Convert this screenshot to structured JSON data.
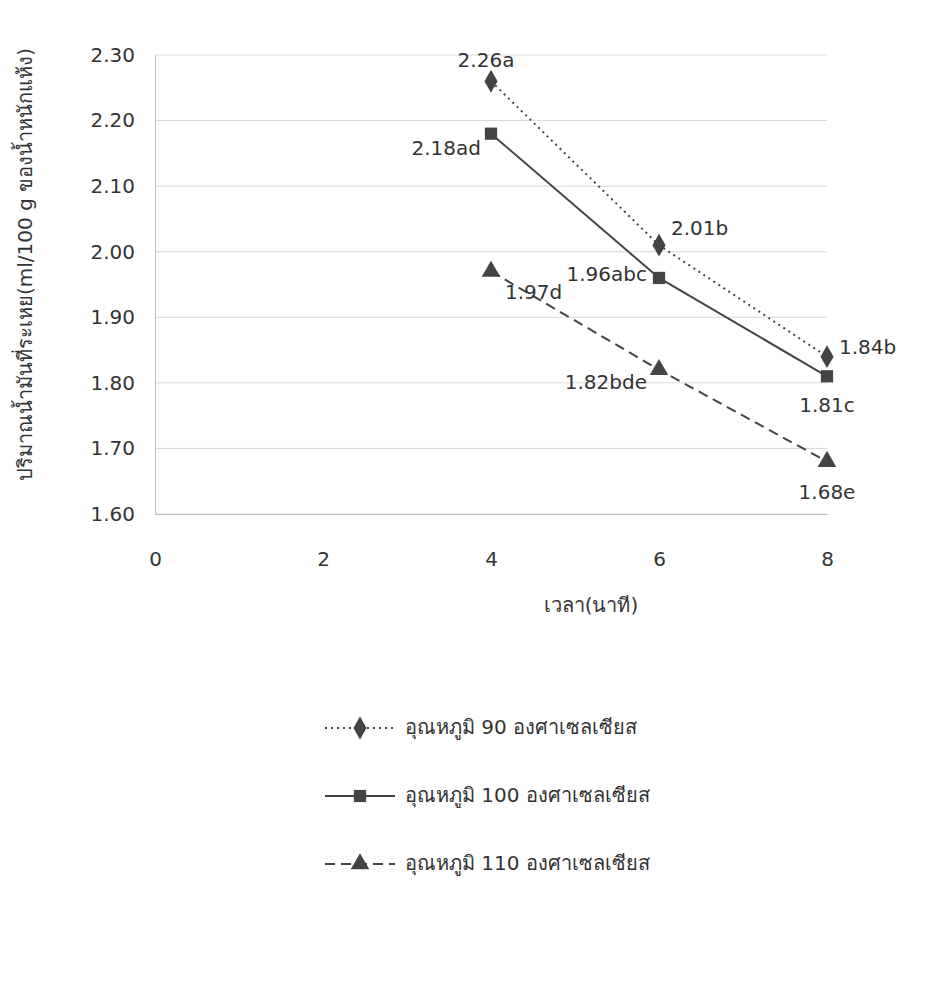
{
  "chart_data": {
    "type": "line",
    "x_label": "เวลา(นาที)",
    "y_label": "ปริมาณน้ำมันที่ระเหย(ml/100 g ของน้ำหนักแห้ง)",
    "x": [
      4,
      6,
      8
    ],
    "xlim": [
      0,
      8
    ],
    "xticks": [
      0,
      2,
      4,
      6,
      8
    ],
    "ylim": [
      1.6,
      2.3
    ],
    "yticks": [
      {
        "value": 1.6,
        "label": "1.60"
      },
      {
        "value": 1.7,
        "label": "1.70"
      },
      {
        "value": 1.8,
        "label": "1.80"
      },
      {
        "value": 1.9,
        "label": "1.90"
      },
      {
        "value": 2.0,
        "label": "2.00"
      },
      {
        "value": 2.1,
        "label": "2.10"
      },
      {
        "value": 2.2,
        "label": "2.20"
      },
      {
        "value": 2.3,
        "label": "2.30"
      }
    ],
    "grid": true,
    "legend": "bottom",
    "data_labels": true,
    "series": [
      {
        "name": "อุณหภูมิ 90 องศาเซลเซียส",
        "color": "#444444",
        "marker": "diamond",
        "line_style": "dotted",
        "values": [
          2.26,
          2.01,
          1.84
        ],
        "value_labels": [
          "2.26a",
          "2.01b",
          "1.84b"
        ]
      },
      {
        "name": "อุณหภูมิ 100 องศาเซลเซียส",
        "color": "#444444",
        "marker": "square",
        "line_style": "solid",
        "values": [
          2.18,
          1.96,
          1.81
        ],
        "value_labels": [
          "2.18ad",
          "1.96abc",
          "1.81c"
        ]
      },
      {
        "name": "อุณหภูมิ 110 องศาเซลเซียส",
        "color": "#444444",
        "marker": "triangle",
        "line_style": "dashed",
        "values": [
          1.97,
          1.82,
          1.68
        ],
        "value_labels": [
          "1.97d",
          "1.82bde",
          "1.68e"
        ]
      }
    ]
  }
}
